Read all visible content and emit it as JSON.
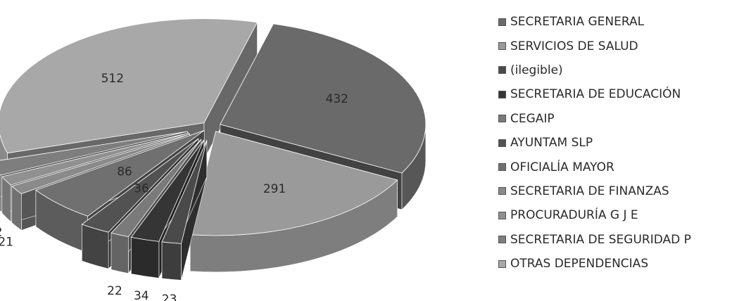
{
  "chart_data": {
    "type": "pie",
    "style": "3d-exploded",
    "categories": [
      "SECRETARIA GENERAL",
      "SERVICIOS DE SALUD",
      "(ilegible)",
      "SECRETARIA DE EDUCACIÓN",
      "CEGAIP",
      "AYUNTAM SLP",
      "OFICIALÍA MAYOR",
      "SECRETARIA DE FINANZAS",
      "PROCURADURÍA G J E",
      "SECRETARIA DE SEGURIDAD P",
      "OTRAS DEPENDENCIAS"
    ],
    "values": [
      432,
      291,
      23,
      34,
      22,
      36,
      86,
      21,
      22,
      33,
      512
    ],
    "labels": [
      "432",
      "291",
      "23",
      "34",
      "22",
      "36",
      "86",
      "21",
      "22",
      "33",
      "512"
    ],
    "colors": [
      "#6a6a6a",
      "#9a9a9a",
      "#4a4a4a",
      "#353535",
      "#7a7a7a",
      "#525252",
      "#707070",
      "#8a8a8a",
      "#909090",
      "#7e7e7e",
      "#a8a8a8"
    ],
    "legend_position": "right",
    "grid": false
  }
}
